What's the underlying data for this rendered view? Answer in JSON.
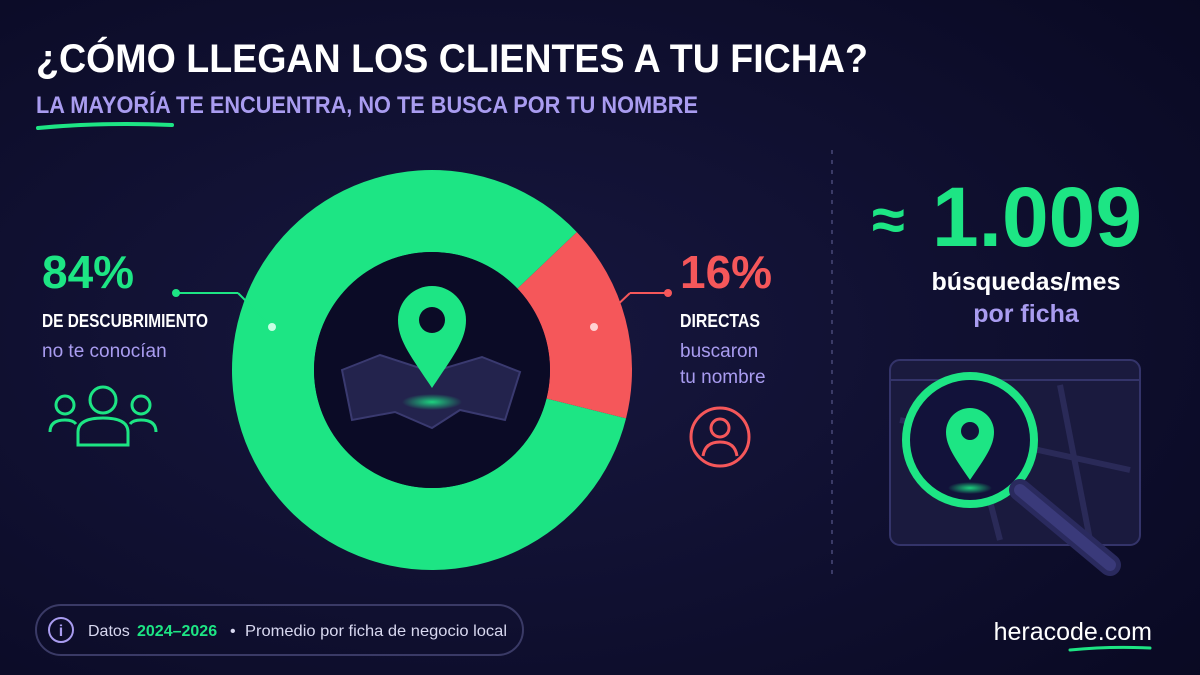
{
  "chart_data": {
    "type": "pie",
    "donut": true,
    "title": "¿CÓMO LLEGAN LOS CLIENTES A TU FICHA?",
    "subtitle": "LA MAYORÍA TE ENCUENTRA, NO TE BUSCA POR TU NOMBRE",
    "categories": [
      "DE DESCUBRIMIENTO",
      "DIRECTAS"
    ],
    "values": [
      84,
      16
    ],
    "value_labels": [
      "84%",
      "16%"
    ],
    "colors": [
      "#1de584",
      "#f5575a"
    ],
    "descriptions": [
      [
        "no te conocían"
      ],
      [
        "buscaron",
        "tu nombre"
      ]
    ]
  },
  "stat": {
    "symbol": "≈",
    "number": "1.009",
    "line1": "búsquedas/mes",
    "line2": "por ficha"
  },
  "footer": {
    "icon": "i",
    "prefix": "Datos",
    "years": "2024–2026",
    "separator": "•",
    "note": "Promedio por ficha de negocio local"
  },
  "brand": "heracode.com"
}
